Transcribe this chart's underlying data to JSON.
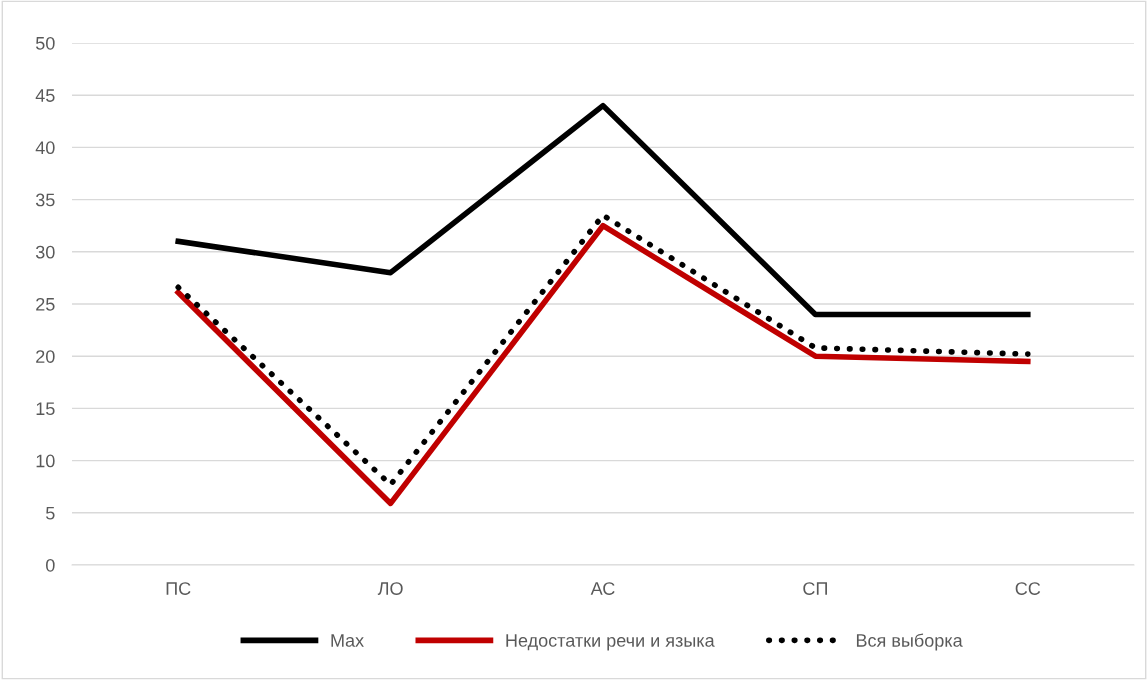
{
  "chart_data": {
    "type": "line",
    "categories": [
      "ПС",
      "ЛО",
      "АС",
      "СП",
      "СС"
    ],
    "series": [
      {
        "name": "Max",
        "color": "#000000",
        "line_style": "solid",
        "values": [
          31,
          28,
          44,
          24,
          24
        ]
      },
      {
        "name": "Недостатки речи и языка",
        "color": "#c00000",
        "line_style": "solid",
        "values": [
          26.1,
          5.9,
          32.5,
          20.0,
          19.5
        ]
      },
      {
        "name": "Вся выборка",
        "color": "#000000",
        "line_style": "dotted",
        "values": [
          26.6,
          7.7,
          33.5,
          20.8,
          20.2
        ]
      }
    ],
    "ylim": [
      0,
      50
    ],
    "yticks": [
      0,
      5,
      10,
      15,
      20,
      25,
      30,
      35,
      40,
      45,
      50
    ],
    "grid": "y",
    "legend": "bottom",
    "marker": "none"
  }
}
